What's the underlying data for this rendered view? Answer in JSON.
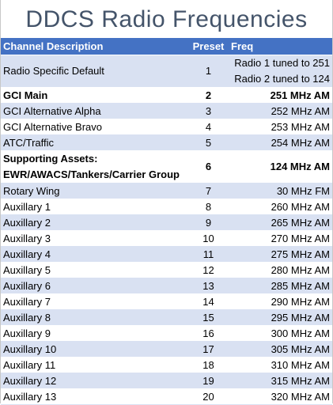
{
  "title": "DDCS Radio Frequencies",
  "headers": {
    "description": "Channel Description",
    "preset": "Preset",
    "freq": "Freq"
  },
  "rows": [
    {
      "description": "Radio Specific Default",
      "preset": "1",
      "freq": "",
      "freq_line1": "Radio 1 tuned to 251",
      "freq_line2": "Radio 2 tuned to 124"
    },
    {
      "description": "GCI Main",
      "preset": "2",
      "freq": "251 MHz AM"
    },
    {
      "description": "GCI Alternative Alpha",
      "preset": "3",
      "freq": "252 MHz AM"
    },
    {
      "description": "GCI Alternative Bravo",
      "preset": "4",
      "freq": "253 MHz AM"
    },
    {
      "description": "ATC/Traffic",
      "preset": "5",
      "freq": "254 MHz AM"
    },
    {
      "description": "",
      "desc_line1": "Supporting Assets:",
      "desc_line2": "EWR/AWACS/Tankers/Carrier Group",
      "preset": "6",
      "freq": "124 MHz AM"
    },
    {
      "description": "Rotary Wing",
      "preset": "7",
      "freq": "30 MHz FM"
    },
    {
      "description": "Auxillary 1",
      "preset": "8",
      "freq": "260 MHz AM"
    },
    {
      "description": "Auxillary 2",
      "preset": "9",
      "freq": "265 MHz AM"
    },
    {
      "description": "Auxillary 3",
      "preset": "10",
      "freq": "270 MHz AM"
    },
    {
      "description": "Auxillary 4",
      "preset": "11",
      "freq": "275 MHz AM"
    },
    {
      "description": "Auxillary 5",
      "preset": "12",
      "freq": "280 MHz AM"
    },
    {
      "description": "Auxillary 6",
      "preset": "13",
      "freq": "285 MHz AM"
    },
    {
      "description": "Auxillary 7",
      "preset": "14",
      "freq": "290 MHz AM"
    },
    {
      "description": "Auxillary 8",
      "preset": "15",
      "freq": "295 MHz AM"
    },
    {
      "description": "Auxillary 9",
      "preset": "16",
      "freq": "300 MHz AM"
    },
    {
      "description": "Auxillary 10",
      "preset": "17",
      "freq": "305 MHz AM"
    },
    {
      "description": "Auxillary 11",
      "preset": "18",
      "freq": "310 MHz AM"
    },
    {
      "description": "Auxillary 12",
      "preset": "19",
      "freq": "315 MHz AM"
    },
    {
      "description": "Auxillary 13",
      "preset": "20",
      "freq": "320 MHz AM"
    }
  ],
  "colors": {
    "title": "#44546a",
    "header_bg": "#4472c4",
    "band_bg": "#d9e1f2"
  }
}
